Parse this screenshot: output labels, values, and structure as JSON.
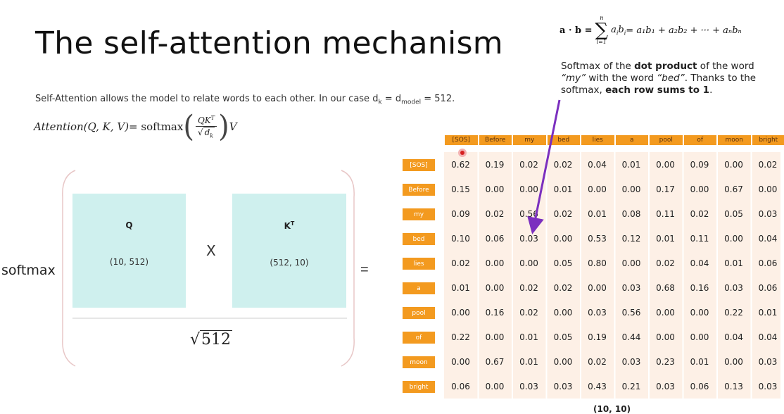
{
  "slide": {
    "title": "The self-attention mechanism",
    "description_prefix": "Self-Attention allows the model to relate words to each other. In our case d",
    "description_sub_k": "k",
    "description_mid": " = d",
    "description_sub_model": "model",
    "description_suffix": " = 512.",
    "formula": {
      "lhs": "Attention(Q, K, V)",
      "eq": " = softmax",
      "numerator": "QK",
      "numerator_sup": "T",
      "denominator": "d",
      "denominator_sub": "k",
      "rhs": "V"
    },
    "dot_formula": {
      "lhs": "a · b = ",
      "sum_upper": "n",
      "sum_lower": "i=1",
      "terms": "a",
      "rest": " = a₁b₁ + a₂b₂ + ··· + aₙbₙ"
    },
    "annotation": {
      "part1": "Softmax of the ",
      "bold1": "dot product",
      "part2": " of the word ",
      "word1": "“my”",
      "part3": " with the word ",
      "word2": "“bed”",
      "part4": ". Thanks to the softmax, ",
      "bold2": "each row sums to 1",
      "part5": "."
    },
    "softmax_label": "softmax",
    "q_label": "Q",
    "q_dim": "(10, 512)",
    "times": "X",
    "k_label": "K",
    "k_sup": "T",
    "k_dim": "(512, 10)",
    "equals": "=",
    "sqrt_label": "512",
    "matrix_shape": "(10, 10)"
  },
  "matrix": {
    "columns": [
      "[SOS]",
      "Before",
      "my",
      "bed",
      "lies",
      "a",
      "pool",
      "of",
      "moon",
      "bright"
    ],
    "rows": [
      {
        "label": "[SOS]",
        "values": [
          "0.62",
          "0.19",
          "0.02",
          "0.02",
          "0.04",
          "0.01",
          "0.00",
          "0.09",
          "0.00",
          "0.02"
        ]
      },
      {
        "label": "Before",
        "values": [
          "0.15",
          "0.00",
          "0.00",
          "0.01",
          "0.00",
          "0.00",
          "0.17",
          "0.00",
          "0.67",
          "0.00"
        ]
      },
      {
        "label": "my",
        "values": [
          "0.09",
          "0.02",
          "0.56",
          "0.02",
          "0.01",
          "0.08",
          "0.11",
          "0.02",
          "0.05",
          "0.03"
        ]
      },
      {
        "label": "bed",
        "values": [
          "0.10",
          "0.06",
          "0.03",
          "0.00",
          "0.53",
          "0.12",
          "0.01",
          "0.11",
          "0.00",
          "0.04"
        ]
      },
      {
        "label": "lies",
        "values": [
          "0.02",
          "0.00",
          "0.00",
          "0.05",
          "0.80",
          "0.00",
          "0.02",
          "0.04",
          "0.01",
          "0.06"
        ]
      },
      {
        "label": "a",
        "values": [
          "0.01",
          "0.00",
          "0.02",
          "0.02",
          "0.00",
          "0.03",
          "0.68",
          "0.16",
          "0.03",
          "0.06"
        ]
      },
      {
        "label": "pool",
        "values": [
          "0.00",
          "0.16",
          "0.02",
          "0.00",
          "0.03",
          "0.56",
          "0.00",
          "0.00",
          "0.22",
          "0.01"
        ]
      },
      {
        "label": "of",
        "values": [
          "0.22",
          "0.00",
          "0.01",
          "0.05",
          "0.19",
          "0.44",
          "0.00",
          "0.00",
          "0.04",
          "0.04"
        ]
      },
      {
        "label": "moon",
        "values": [
          "0.00",
          "0.67",
          "0.01",
          "0.00",
          "0.02",
          "0.03",
          "0.23",
          "0.01",
          "0.00",
          "0.03"
        ]
      },
      {
        "label": "bright",
        "values": [
          "0.06",
          "0.00",
          "0.03",
          "0.03",
          "0.43",
          "0.21",
          "0.03",
          "0.06",
          "0.13",
          "0.03"
        ]
      }
    ]
  },
  "colors": {
    "header_orange": "#f39a1f",
    "grid_bg": "#fdf0e6",
    "box_teal": "#cff0ee",
    "arrow_purple": "#7b2fbf"
  }
}
